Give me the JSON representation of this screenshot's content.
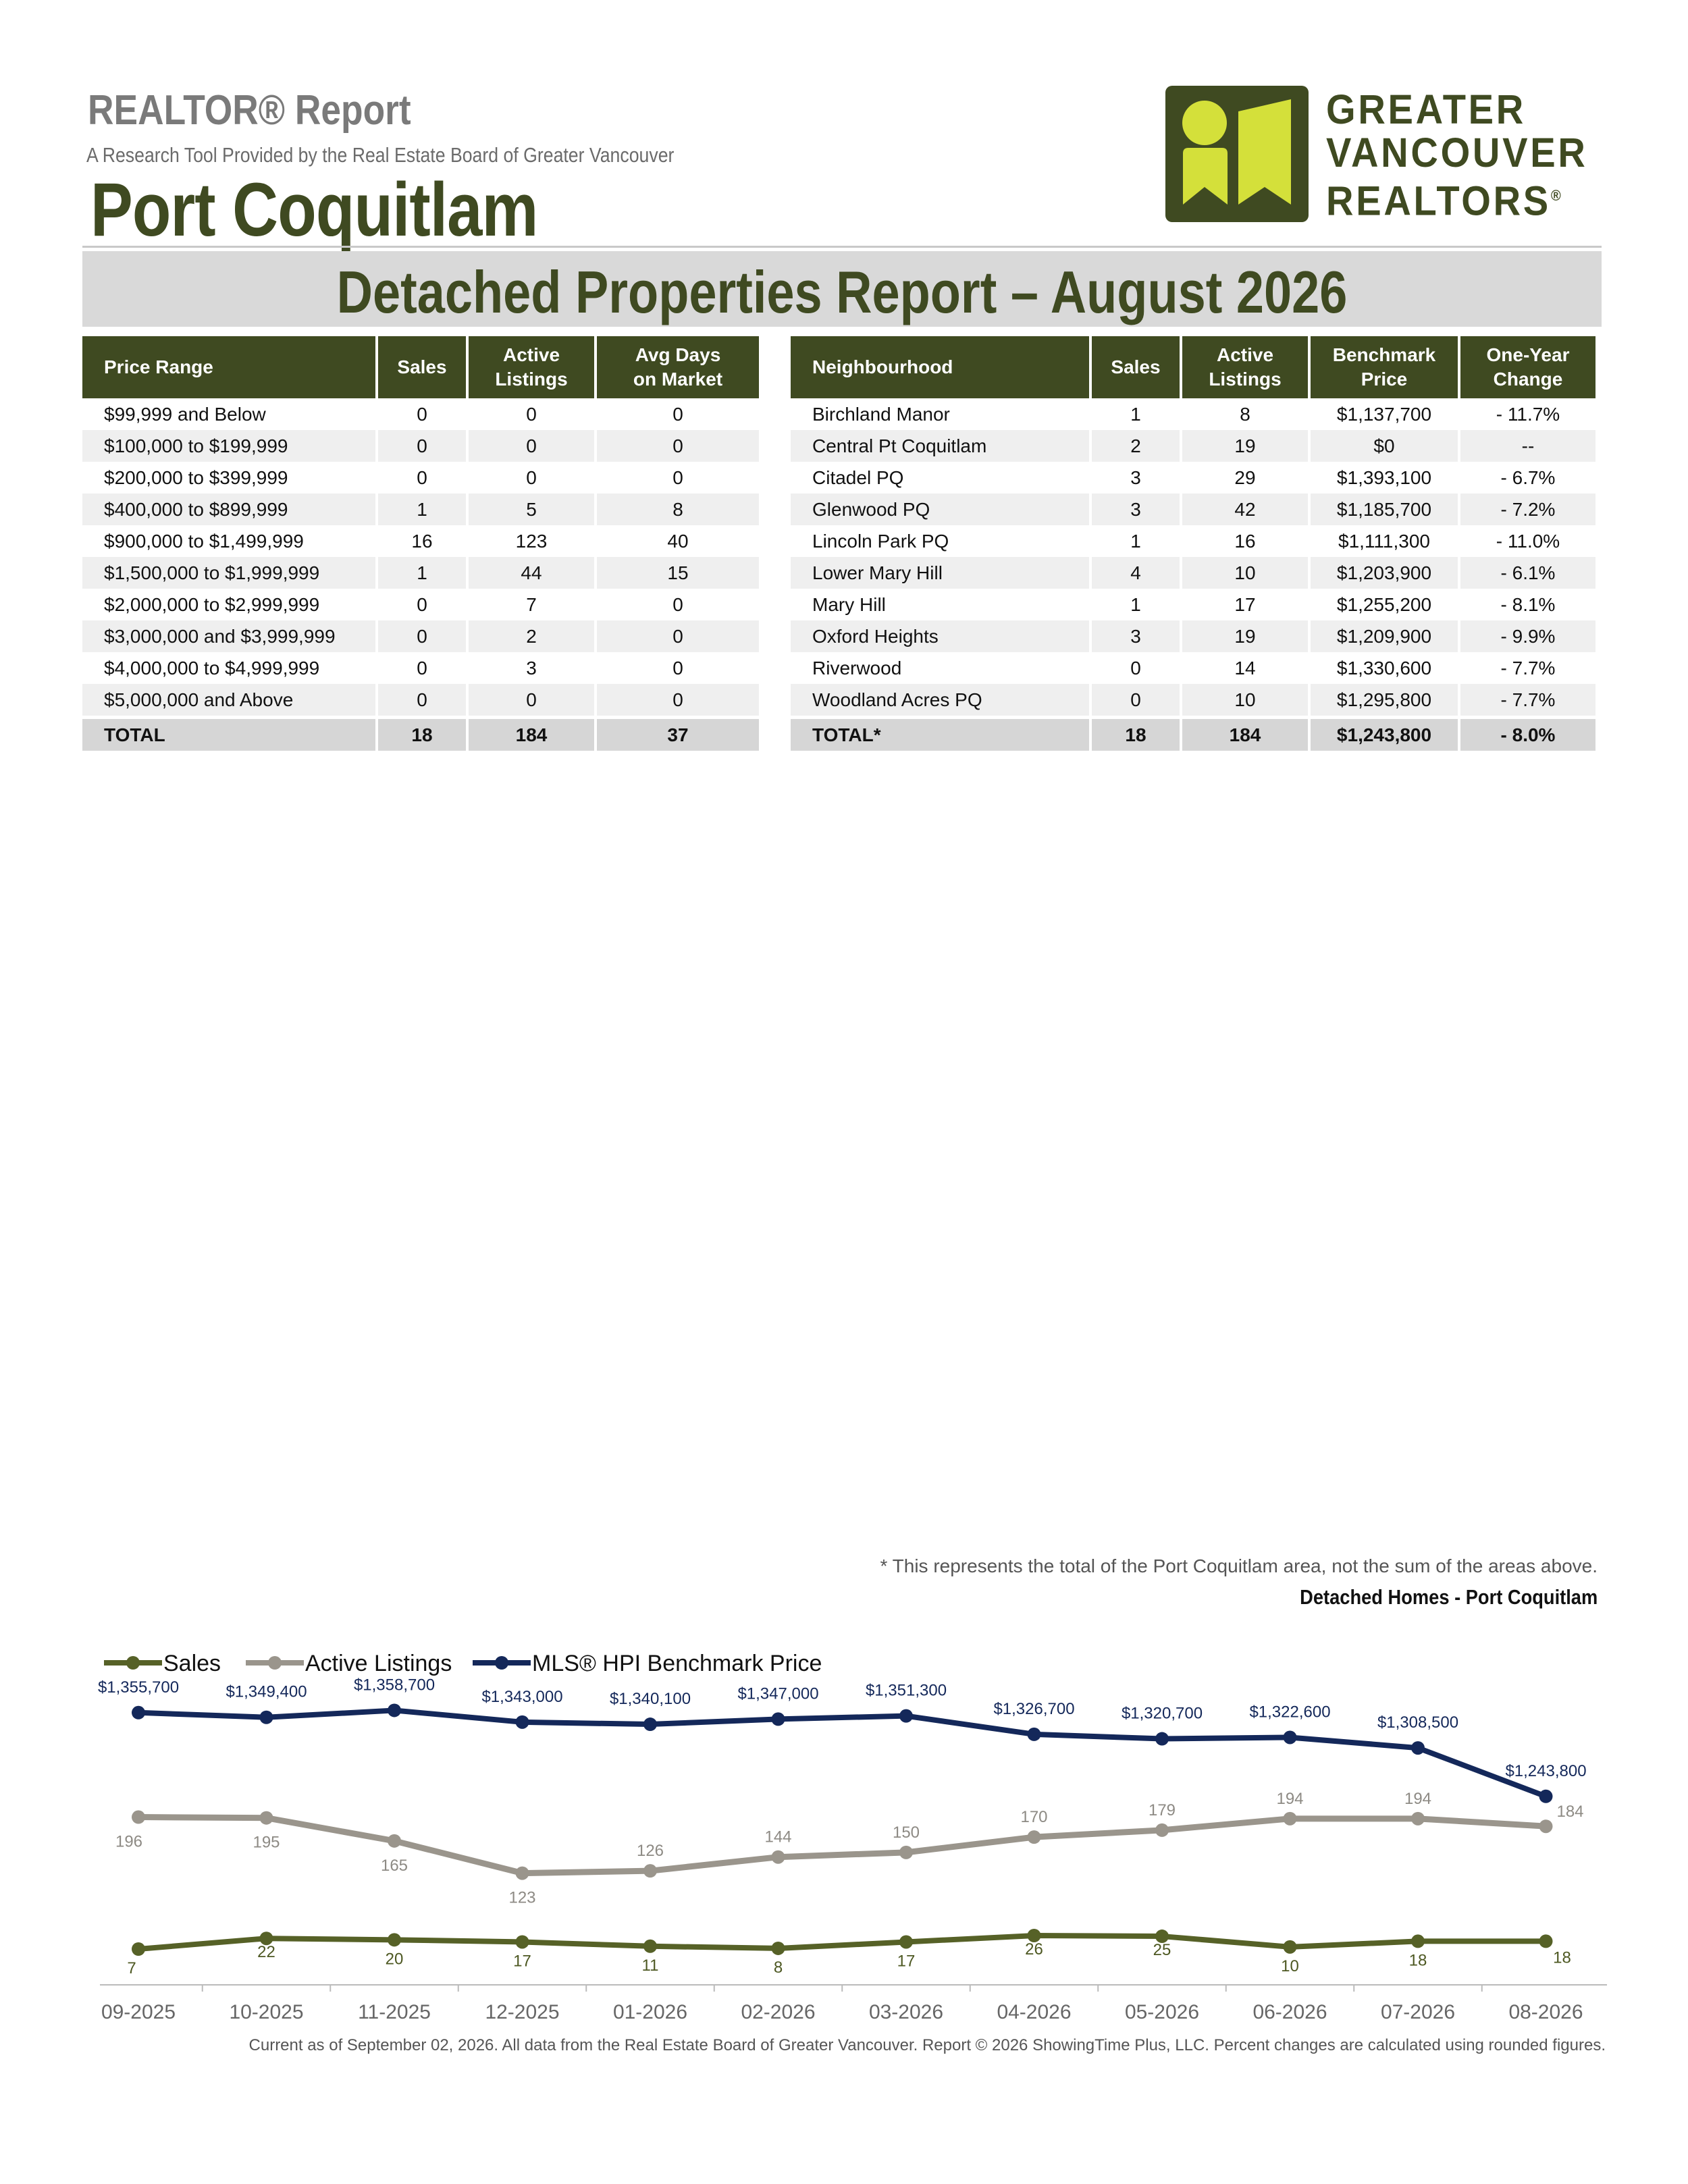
{
  "header": {
    "report_title": "REALTOR® Report",
    "subtitle": "A Research Tool Provided by the Real Estate Board of Greater Vancouver",
    "area": "Port Coquitlam",
    "banner": "Detached Properties Report – August 2026"
  },
  "logo": {
    "line1": "GREATER",
    "line2": "VANCOUVER",
    "line3": "REALTORS",
    "reg": "®"
  },
  "price_table": {
    "headers": [
      "Price Range",
      "Sales",
      "Active Listings",
      "Avg Days on Market"
    ],
    "rows": [
      [
        "$99,999 and Below",
        "0",
        "0",
        "0"
      ],
      [
        "$100,000 to $199,999",
        "0",
        "0",
        "0"
      ],
      [
        "$200,000 to $399,999",
        "0",
        "0",
        "0"
      ],
      [
        "$400,000 to $899,999",
        "1",
        "5",
        "8"
      ],
      [
        "$900,000 to $1,499,999",
        "16",
        "123",
        "40"
      ],
      [
        "$1,500,000 to $1,999,999",
        "1",
        "44",
        "15"
      ],
      [
        "$2,000,000 to $2,999,999",
        "0",
        "7",
        "0"
      ],
      [
        "$3,000,000 and $3,999,999",
        "0",
        "2",
        "0"
      ],
      [
        "$4,000,000 to $4,999,999",
        "0",
        "3",
        "0"
      ],
      [
        "$5,000,000 and Above",
        "0",
        "0",
        "0"
      ]
    ],
    "total": [
      "TOTAL",
      "18",
      "184",
      "37"
    ]
  },
  "hood_table": {
    "headers": [
      "Neighbourhood",
      "Sales",
      "Active Listings",
      "Benchmark Price",
      "One-Year Change"
    ],
    "rows": [
      [
        "Birchland Manor",
        "1",
        "8",
        "$1,137,700",
        "- 11.7%"
      ],
      [
        "Central Pt Coquitlam",
        "2",
        "19",
        "$0",
        "--"
      ],
      [
        "Citadel PQ",
        "3",
        "29",
        "$1,393,100",
        "- 6.7%"
      ],
      [
        "Glenwood PQ",
        "3",
        "42",
        "$1,185,700",
        "- 7.2%"
      ],
      [
        "Lincoln Park PQ",
        "1",
        "16",
        "$1,111,300",
        "- 11.0%"
      ],
      [
        "Lower Mary Hill",
        "4",
        "10",
        "$1,203,900",
        "- 6.1%"
      ],
      [
        "Mary Hill",
        "1",
        "17",
        "$1,255,200",
        "- 8.1%"
      ],
      [
        "Oxford Heights",
        "3",
        "19",
        "$1,209,900",
        "- 9.9%"
      ],
      [
        "Riverwood",
        "0",
        "14",
        "$1,330,600",
        "- 7.7%"
      ],
      [
        "Woodland Acres PQ",
        "0",
        "10",
        "$1,295,800",
        "- 7.7%"
      ]
    ],
    "total": [
      "TOTAL*",
      "18",
      "184",
      "$1,243,800",
      "- 8.0%"
    ]
  },
  "footnote": "* This represents the total of the Port Coquitlam area, not the sum of the areas above.",
  "chart_title": "Detached Homes - Port Coquitlam",
  "footer": "Current as of September 02, 2026. All data from the Real Estate Board of Greater Vancouver.  Report © 2026 ShowingTime Plus, LLC. Percent changes are calculated using rounded figures.",
  "chart_data": {
    "type": "line",
    "categories": [
      "09-2025",
      "10-2025",
      "11-2025",
      "12-2025",
      "01-2026",
      "02-2026",
      "03-2026",
      "04-2026",
      "05-2026",
      "06-2026",
      "07-2026",
      "08-2026"
    ],
    "series": [
      {
        "name": "Sales",
        "color": "#566127",
        "values": [
          7,
          22,
          20,
          17,
          11,
          8,
          17,
          26,
          25,
          10,
          18,
          18
        ],
        "labels": [
          "7",
          "22",
          "20",
          "17",
          "11",
          "8",
          "17",
          "26",
          "25",
          "10",
          "18",
          "18"
        ]
      },
      {
        "name": "Active Listings",
        "color": "#9a958c",
        "values": [
          196,
          195,
          165,
          123,
          126,
          144,
          150,
          170,
          179,
          194,
          194,
          184
        ],
        "labels": [
          "196",
          "195",
          "165",
          "123",
          "126",
          "144",
          "150",
          "170",
          "179",
          "194",
          "194",
          "184"
        ]
      },
      {
        "name": "MLS® HPI Benchmark Price",
        "color": "#14285a",
        "values": [
          1355700,
          1349400,
          1358700,
          1343000,
          1340100,
          1347000,
          1351300,
          1326700,
          1320700,
          1322600,
          1308500,
          1243800
        ],
        "labels": [
          "$1,355,700",
          "$1,349,400",
          "$1,358,700",
          "$1,343,000",
          "$1,340,100",
          "$1,347,000",
          "$1,351,300",
          "$1,326,700",
          "$1,320,700",
          "$1,322,600",
          "$1,308,500",
          "$1,243,800"
        ]
      }
    ],
    "legend_placement": "top-left",
    "grid": false
  }
}
